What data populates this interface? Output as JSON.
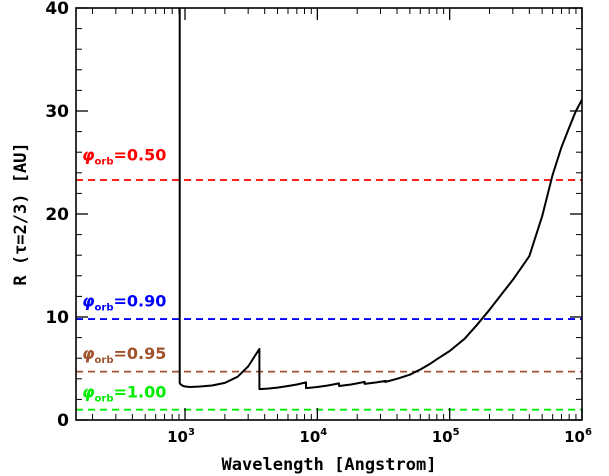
{
  "chart_data": {
    "type": "line",
    "xlabel": "Wavelength [Angstrom]",
    "ylabel": "R (τ=2/3) [AU]",
    "x_scale": "log",
    "xlim": [
      150,
      1000000
    ],
    "ylim": [
      0,
      40
    ],
    "x_tick_labels": [
      {
        "value": 1000,
        "base": "10",
        "exp": "3"
      },
      {
        "value": 10000,
        "base": "10",
        "exp": "4"
      },
      {
        "value": 100000,
        "base": "10",
        "exp": "5"
      },
      {
        "value": 1000000,
        "base": "10",
        "exp": "6"
      }
    ],
    "y_ticks": [
      0,
      10,
      20,
      30,
      40
    ],
    "y_tick_labels": [
      "0",
      "10",
      "20",
      "30",
      "40"
    ],
    "series": [
      {
        "color": "#000000",
        "style": "solid",
        "x": [
          912,
          912,
          920,
          940,
          970,
          1000,
          1100,
          1300,
          1600,
          2000,
          2500,
          3000,
          3400,
          3646,
          3646,
          4200,
          5000,
          6000,
          7000,
          8204,
          8204,
          10000,
          12000,
          14585,
          14585,
          18000,
          22790,
          22790,
          28000,
          32820,
          32820,
          40000,
          50000,
          60000,
          70000,
          80000,
          100000,
          130000,
          160000,
          200000,
          250000,
          300000,
          400000,
          500000,
          600000,
          700000,
          800000,
          900000,
          1000000
        ],
        "y": [
          40,
          3.6,
          3.5,
          3.4,
          3.3,
          3.25,
          3.2,
          3.25,
          3.35,
          3.6,
          4.2,
          5.2,
          6.3,
          6.9,
          3.0,
          3.05,
          3.15,
          3.3,
          3.45,
          3.65,
          3.1,
          3.2,
          3.35,
          3.55,
          3.3,
          3.45,
          3.7,
          3.5,
          3.65,
          3.8,
          3.7,
          4.0,
          4.4,
          4.9,
          5.4,
          5.9,
          6.7,
          7.9,
          9.2,
          10.7,
          12.3,
          13.6,
          15.9,
          19.8,
          23.8,
          26.5,
          28.4,
          30.0,
          31.1
        ]
      }
    ],
    "reference_lines": [
      {
        "y": 23.3,
        "color": "#ff0000",
        "style": "dashed",
        "label_sym": "φ",
        "label_sub": "orb",
        "label_val": "=0.50",
        "label_y": 25.2
      },
      {
        "y": 9.8,
        "color": "#0000ff",
        "style": "dashed",
        "label_sym": "φ",
        "label_sub": "orb",
        "label_val": "=0.90",
        "label_y": 11.0
      },
      {
        "y": 4.7,
        "color": "#a0522d",
        "style": "dashed",
        "label_sym": "φ",
        "label_sub": "orb",
        "label_val": "=0.95",
        "label_y": 5.9
      },
      {
        "y": 1.0,
        "color": "#00ee00",
        "style": "dashed",
        "label_sym": "φ",
        "label_sub": "orb",
        "label_val": "=1.00",
        "label_y": 2.2
      }
    ]
  }
}
